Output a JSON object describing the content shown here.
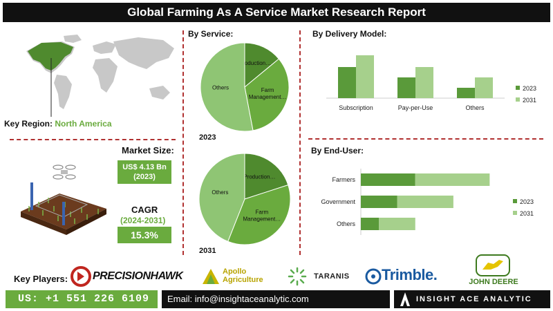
{
  "title": "Global Farming As A Service Market Research Report",
  "key_region": {
    "label": "Key Region:",
    "value": "North America"
  },
  "market_size": {
    "label": "Market Size:",
    "value": "US$ 4.13 Bn",
    "year": "(2023)"
  },
  "cagr": {
    "label": "CAGR",
    "period": "(2024-2031)",
    "value": "15.3%"
  },
  "by_service_label": "By Service:",
  "by_delivery_label": "By Delivery Model:",
  "by_end_user_label": "By End-User:",
  "key_players_label": "Key Players:",
  "key_players": [
    "PRECISIONHAWK",
    "Apollo Agriculture",
    "TARANIS",
    "Trimble.",
    "JOHN DEERE"
  ],
  "footer": {
    "phone": "US: +1 551 226 6109",
    "email": "Email: info@insightaceanalytic.com",
    "brand": "INSIGHT ACE ANALYTIC"
  },
  "colors": {
    "dark_green": "#5a9a3a",
    "mid_green": "#6aab3e",
    "light_green": "#8fc574",
    "accent_red": "#b03030"
  },
  "chart_data": [
    {
      "type": "pie",
      "title": "By Service",
      "year_label": "2023",
      "labels": [
        "Production…",
        "Farm Management…",
        "Others"
      ],
      "values": [
        14,
        33,
        53
      ],
      "colors": [
        "#4f8a2e",
        "#6aab3e",
        "#8fc574"
      ]
    },
    {
      "type": "pie",
      "title": "By Service",
      "year_label": "2031",
      "labels": [
        "Production…",
        "Farm Management…",
        "Others"
      ],
      "values": [
        20,
        36,
        44
      ],
      "colors": [
        "#4f8a2e",
        "#6aab3e",
        "#8fc574"
      ]
    },
    {
      "type": "bar",
      "title": "By Delivery Model",
      "categories": [
        "Subscription",
        "Pay-per-Use",
        "Others"
      ],
      "series": [
        {
          "name": "2023",
          "values": [
            45,
            30,
            15
          ],
          "color": "#5a9a3a"
        },
        {
          "name": "2031",
          "values": [
            62,
            45,
            30
          ],
          "color": "#a6d08c"
        }
      ],
      "ylim": [
        0,
        70
      ],
      "legend": "right"
    },
    {
      "type": "bar",
      "orientation": "horizontal",
      "title": "By End-User",
      "categories": [
        "Farmers",
        "Government",
        "Others"
      ],
      "series": [
        {
          "name": "2023",
          "values": [
            30,
            20,
            10
          ],
          "color": "#5a9a3a"
        },
        {
          "name": "2031",
          "values": [
            41,
            31,
            20
          ],
          "color": "#a6d08c"
        }
      ],
      "stacked": true,
      "xlim": [
        0,
        80
      ],
      "legend": "right"
    }
  ]
}
